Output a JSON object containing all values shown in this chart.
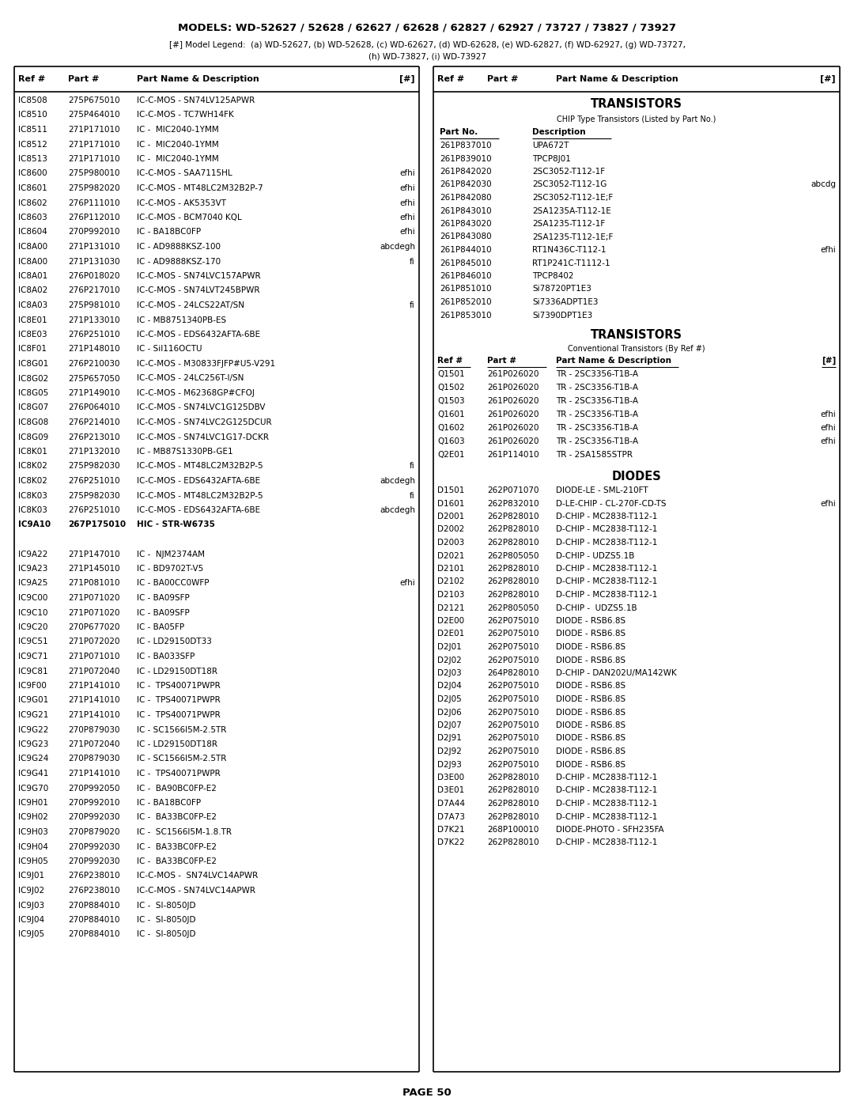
{
  "title": "MODELS: WD-52627 / 52628 / 62627 / 62628 / 62827 / 62927 / 73727 / 73827 / 73927",
  "legend_line": "[#] Model Legend:  (a) WD-52627, (b) WD-52628, (c) WD-62627, (d) WD-62628, (e) WD-62827, (f) WD-62927, (g) WD-73727,",
  "legend_line2": "(h) WD-73827, (i) WD-73927",
  "page": "PAGE 50",
  "left_table_header": [
    "Ref #",
    "Part #",
    "Part Name & Description",
    "[#]"
  ],
  "right_table_header": [
    "Ref #",
    "Part #",
    "Part Name & Description",
    "[#]"
  ],
  "left_rows": [
    [
      "IC8508",
      "275P675010",
      "IC-C-MOS - SN74LV125APWR",
      "",
      false
    ],
    [
      "IC8510",
      "275P464010",
      "IC-C-MOS - TC7WH14FK",
      "",
      false
    ],
    [
      "IC8511",
      "271P171010",
      "IC -  MIC2040-1YMM",
      "",
      false
    ],
    [
      "IC8512",
      "271P171010",
      "IC -  MIC2040-1YMM",
      "",
      false
    ],
    [
      "IC8513",
      "271P171010",
      "IC -  MIC2040-1YMM",
      "",
      false
    ],
    [
      "IC8600",
      "275P980010",
      "IC-C-MOS - SAA7115HL",
      "efhi",
      false
    ],
    [
      "IC8601",
      "275P982020",
      "IC-C-MOS - MT48LC2M32B2P-7",
      "efhi",
      false
    ],
    [
      "IC8602",
      "276P111010",
      "IC-C-MOS - AK5353VT",
      "efhi",
      false
    ],
    [
      "IC8603",
      "276P112010",
      "IC-C-MOS - BCM7040 KQL",
      "efhi",
      false
    ],
    [
      "IC8604",
      "270P992010",
      "IC - BA18BC0FP",
      "efhi",
      false
    ],
    [
      "IC8A00",
      "271P131010",
      "IC - AD9888KSZ-100",
      "abcdegh",
      false
    ],
    [
      "IC8A00",
      "271P131030",
      "IC - AD9888KSZ-170",
      "fi",
      false
    ],
    [
      "IC8A01",
      "276P018020",
      "IC-C-MOS - SN74LVC157APWR",
      "",
      false
    ],
    [
      "IC8A02",
      "276P217010",
      "IC-C-MOS - SN74LVT245BPWR",
      "",
      false
    ],
    [
      "IC8A03",
      "275P981010",
      "IC-C-MOS - 24LCS22AT/SN",
      "fi",
      false
    ],
    [
      "IC8E01",
      "271P133010",
      "IC - MB8751340PB-ES",
      "",
      false
    ],
    [
      "IC8E03",
      "276P251010",
      "IC-C-MOS - EDS6432AFTA-6BE",
      "",
      false
    ],
    [
      "IC8F01",
      "271P148010",
      "IC - Sil116OCTU",
      "",
      false
    ],
    [
      "IC8G01",
      "276P210030",
      "IC-C-MOS - M30833FJFP#U5-V291",
      "",
      false
    ],
    [
      "IC8G02",
      "275P657050",
      "IC-C-MOS - 24LC256T-I/SN",
      "",
      false
    ],
    [
      "IC8G05",
      "271P149010",
      "IC-C-MOS - M62368GP#CFOJ",
      "",
      false
    ],
    [
      "IC8G07",
      "276P064010",
      "IC-C-MOS - SN74LVC1G125DBV",
      "",
      false
    ],
    [
      "IC8G08",
      "276P214010",
      "IC-C-MOS - SN74LVC2G125DCUR",
      "",
      false
    ],
    [
      "IC8G09",
      "276P213010",
      "IC-C-MOS - SN74LVC1G17-DCKR",
      "",
      false
    ],
    [
      "IC8K01",
      "271P132010",
      "IC - MB87S1330PB-GE1",
      "",
      false
    ],
    [
      "IC8K02",
      "275P982030",
      "IC-C-MOS - MT48LC2M32B2P-5",
      "fi",
      false
    ],
    [
      "IC8K02",
      "276P251010",
      "IC-C-MOS - EDS6432AFTA-6BE",
      "abcdegh",
      false
    ],
    [
      "IC8K03",
      "275P982030",
      "IC-C-MOS - MT48LC2M32B2P-5",
      "fi",
      false
    ],
    [
      "IC8K03",
      "276P251010",
      "IC-C-MOS - EDS6432AFTA-6BE",
      "abcdegh",
      false
    ],
    [
      "IC9A10",
      "267P175010",
      "HIC - STR-W6735",
      "",
      true
    ],
    [
      "",
      "",
      "",
      "",
      false
    ],
    [
      "IC9A22",
      "271P147010",
      "IC -  NJM2374AM",
      "",
      false
    ],
    [
      "IC9A23",
      "271P145010",
      "IC - BD9702T-V5",
      "",
      false
    ],
    [
      "IC9A25",
      "271P081010",
      "IC - BA00CC0WFP",
      "efhi",
      false
    ],
    [
      "IC9C00",
      "271P071020",
      "IC - BA09SFP",
      "",
      false
    ],
    [
      "IC9C10",
      "271P071020",
      "IC - BA09SFP",
      "",
      false
    ],
    [
      "IC9C20",
      "270P677020",
      "IC - BA05FP",
      "",
      false
    ],
    [
      "IC9C51",
      "271P072020",
      "IC - LD29150DT33",
      "",
      false
    ],
    [
      "IC9C71",
      "271P071010",
      "IC - BA033SFP",
      "",
      false
    ],
    [
      "IC9C81",
      "271P072040",
      "IC - LD29150DT18R",
      "",
      false
    ],
    [
      "IC9F00",
      "271P141010",
      "IC -  TPS40071PWPR",
      "",
      false
    ],
    [
      "IC9G01",
      "271P141010",
      "IC -  TPS40071PWPR",
      "",
      false
    ],
    [
      "IC9G21",
      "271P141010",
      "IC -  TPS40071PWPR",
      "",
      false
    ],
    [
      "IC9G22",
      "270P879030",
      "IC - SC1566I5M-2.5TR",
      "",
      false
    ],
    [
      "IC9G23",
      "271P072040",
      "IC - LD29150DT18R",
      "",
      false
    ],
    [
      "IC9G24",
      "270P879030",
      "IC - SC1566I5M-2.5TR",
      "",
      false
    ],
    [
      "IC9G41",
      "271P141010",
      "IC -  TPS40071PWPR",
      "",
      false
    ],
    [
      "IC9G70",
      "270P992050",
      "IC -  BA90BC0FP-E2",
      "",
      false
    ],
    [
      "IC9H01",
      "270P992010",
      "IC - BA18BC0FP",
      "",
      false
    ],
    [
      "IC9H02",
      "270P992030",
      "IC -  BA33BC0FP-E2",
      "",
      false
    ],
    [
      "IC9H03",
      "270P879020",
      "IC -  SC1566I5M-1.8.TR",
      "",
      false
    ],
    [
      "IC9H04",
      "270P992030",
      "IC -  BA33BC0FP-E2",
      "",
      false
    ],
    [
      "IC9H05",
      "270P992030",
      "IC -  BA33BC0FP-E2",
      "",
      false
    ],
    [
      "IC9J01",
      "276P238010",
      "IC-C-MOS -  SN74LVC14APWR",
      "",
      false
    ],
    [
      "IC9J02",
      "276P238010",
      "IC-C-MOS - SN74LVC14APWR",
      "",
      false
    ],
    [
      "IC9J03",
      "270P884010",
      "IC -  SI-8050JD",
      "",
      false
    ],
    [
      "IC9J04",
      "270P884010",
      "IC -  SI-8050JD",
      "",
      false
    ],
    [
      "IC9J05",
      "270P884010",
      "IC -  SI-8050JD",
      "",
      false
    ]
  ],
  "right_section1_title": "TRANSISTORS",
  "right_section1_sub": "CHIP Type Transistors (Listed by Part No.)",
  "right_section1_col1": "Part No.",
  "right_section1_col2": "Description",
  "right_transistors_chip": [
    [
      "261P837010",
      "UPA672T",
      ""
    ],
    [
      "261P839010",
      "TPCP8J01",
      ""
    ],
    [
      "261P842020",
      "2SC3052-T112-1F",
      ""
    ],
    [
      "261P842030",
      "2SC3052-T112-1G",
      "abcdg"
    ],
    [
      "261P842080",
      "2SC3052-T112-1E;F",
      ""
    ],
    [
      "261P843010",
      "2SA1235A-T112-1E",
      ""
    ],
    [
      "261P843020",
      "2SA1235-T112-1F",
      ""
    ],
    [
      "261P843080",
      "2SA1235-T112-1E;F",
      ""
    ],
    [
      "261P844010",
      "RT1N436C-T112-1",
      "efhi"
    ],
    [
      "261P845010",
      "RT1P241C-T1112-1",
      ""
    ],
    [
      "261P846010",
      "TPCP8402",
      ""
    ],
    [
      "261P851010",
      "Si78720PT1E3",
      ""
    ],
    [
      "261P852010",
      "Si7336ADPT1E3",
      ""
    ],
    [
      "261P853010",
      "Si7390DPT1E3",
      ""
    ]
  ],
  "right_section2_title": "TRANSISTORS",
  "right_section2_sub": "Conventional Transistors (By Ref #)",
  "right_transistors_conv_headers": [
    "Ref #",
    "Part #",
    "Part Name & Description",
    "[#]"
  ],
  "right_transistors_conv": [
    [
      "Q1501",
      "261P026020",
      "TR - 2SC3356-T1B-A",
      ""
    ],
    [
      "Q1502",
      "261P026020",
      "TR - 2SC3356-T1B-A",
      ""
    ],
    [
      "Q1503",
      "261P026020",
      "TR - 2SC3356-T1B-A",
      ""
    ],
    [
      "Q1601",
      "261P026020",
      "TR - 2SC3356-T1B-A",
      "efhi"
    ],
    [
      "Q1602",
      "261P026020",
      "TR - 2SC3356-T1B-A",
      "efhi"
    ],
    [
      "Q1603",
      "261P026020",
      "TR - 2SC3356-T1B-A",
      "efhi"
    ],
    [
      "Q2E01",
      "261P114010",
      "TR - 2SA1585STPR",
      ""
    ]
  ],
  "right_section3_title": "DIODES",
  "right_diodes": [
    [
      "D1501",
      "262P071070",
      "DIODE-LE - SML-210FT",
      ""
    ],
    [
      "D1601",
      "262P832010",
      "D-LE-CHIP - CL-270F-CD-TS",
      "efhi"
    ],
    [
      "D2001",
      "262P828010",
      "D-CHIP - MC2838-T112-1",
      ""
    ],
    [
      "D2002",
      "262P828010",
      "D-CHIP - MC2838-T112-1",
      ""
    ],
    [
      "D2003",
      "262P828010",
      "D-CHIP - MC2838-T112-1",
      ""
    ],
    [
      "D2021",
      "262P805050",
      "D-CHIP - UDZS5.1B",
      ""
    ],
    [
      "D2101",
      "262P828010",
      "D-CHIP - MC2838-T112-1",
      ""
    ],
    [
      "D2102",
      "262P828010",
      "D-CHIP - MC2838-T112-1",
      ""
    ],
    [
      "D2103",
      "262P828010",
      "D-CHIP - MC2838-T112-1",
      ""
    ],
    [
      "D2121",
      "262P805050",
      "D-CHIP -  UDZS5.1B",
      ""
    ],
    [
      "D2E00",
      "262P075010",
      "DIODE - RSB6.8S",
      ""
    ],
    [
      "D2E01",
      "262P075010",
      "DIODE - RSB6.8S",
      ""
    ],
    [
      "D2J01",
      "262P075010",
      "DIODE - RSB6.8S",
      ""
    ],
    [
      "D2J02",
      "262P075010",
      "DIODE - RSB6.8S",
      ""
    ],
    [
      "D2J03",
      "264P828010",
      "D-CHIP - DAN202U/MA142WK",
      ""
    ],
    [
      "D2J04",
      "262P075010",
      "DIODE - RSB6.8S",
      ""
    ],
    [
      "D2J05",
      "262P075010",
      "DIODE - RSB6.8S",
      ""
    ],
    [
      "D2J06",
      "262P075010",
      "DIODE - RSB6.8S",
      ""
    ],
    [
      "D2J07",
      "262P075010",
      "DIODE - RSB6.8S",
      ""
    ],
    [
      "D2J91",
      "262P075010",
      "DIODE - RSB6.8S",
      ""
    ],
    [
      "D2J92",
      "262P075010",
      "DIODE - RSB6.8S",
      ""
    ],
    [
      "D2J93",
      "262P075010",
      "DIODE - RSB6.8S",
      ""
    ],
    [
      "D3E00",
      "262P828010",
      "D-CHIP - MC2838-T112-1",
      ""
    ],
    [
      "D3E01",
      "262P828010",
      "D-CHIP - MC2838-T112-1",
      ""
    ],
    [
      "D7A44",
      "262P828010",
      "D-CHIP - MC2838-T112-1",
      ""
    ],
    [
      "D7A73",
      "262P828010",
      "D-CHIP - MC2838-T112-1",
      ""
    ],
    [
      "D7K21",
      "268P100010",
      "DIODE-PHOTO - SFH235FA",
      ""
    ],
    [
      "D7K22",
      "262P828010",
      "D-CHIP - MC2838-T112-1",
      ""
    ]
  ],
  "bg_color": "#ffffff",
  "border_color": "#000000",
  "figw": 10.8,
  "figh": 13.97,
  "dpi": 100
}
